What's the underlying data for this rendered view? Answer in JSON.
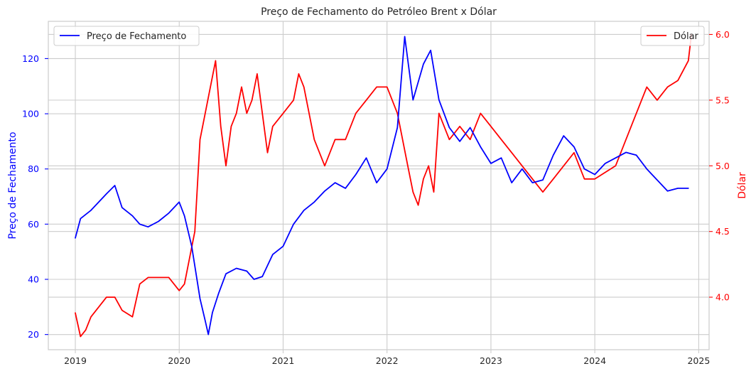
{
  "chart_data": {
    "type": "line",
    "title": "Preço de Fechamento do Petróleo Brent x Dólar",
    "xlabel": "",
    "x_ticks": [
      "2019",
      "2020",
      "2021",
      "2022",
      "2023",
      "2024",
      "2025"
    ],
    "x_range": [
      2018.74,
      2025.1
    ],
    "grid": true,
    "left_axis": {
      "label": "Preço de Fechamento",
      "color": "#0000ff",
      "ylim": [
        14.5,
        133.5
      ],
      "ticks": [
        "20",
        "40",
        "60",
        "80",
        "100",
        "120"
      ]
    },
    "right_axis": {
      "label": "Dólar",
      "color": "#ff0000",
      "ylim": [
        3.6,
        6.1
      ],
      "ticks": [
        "4.0",
        "4.5",
        "5.0",
        "5.5",
        "6.0"
      ]
    },
    "series": [
      {
        "name": "Preço de Fechamento",
        "axis": "left",
        "color": "#0000ff",
        "legend_position": "top-left",
        "x": [
          2019.0,
          2019.05,
          2019.15,
          2019.3,
          2019.38,
          2019.45,
          2019.55,
          2019.62,
          2019.7,
          2019.8,
          2019.9,
          2020.0,
          2020.05,
          2020.12,
          2020.2,
          2020.25,
          2020.28,
          2020.32,
          2020.38,
          2020.45,
          2020.55,
          2020.65,
          2020.72,
          2020.8,
          2020.9,
          2021.0,
          2021.1,
          2021.2,
          2021.3,
          2021.4,
          2021.5,
          2021.6,
          2021.7,
          2021.8,
          2021.9,
          2022.0,
          2022.1,
          2022.17,
          2022.25,
          2022.35,
          2022.42,
          2022.5,
          2022.6,
          2022.7,
          2022.8,
          2022.9,
          2023.0,
          2023.1,
          2023.2,
          2023.3,
          2023.4,
          2023.5,
          2023.6,
          2023.7,
          2023.8,
          2023.9,
          2024.0,
          2024.1,
          2024.2,
          2024.3,
          2024.4,
          2024.5,
          2024.6,
          2024.7,
          2024.8,
          2024.9
        ],
        "values": [
          55,
          62,
          65,
          71,
          74,
          66,
          63,
          60,
          59,
          61,
          64,
          68,
          63,
          52,
          33,
          25,
          20,
          28,
          35,
          42,
          44,
          43,
          40,
          41,
          49,
          52,
          60,
          65,
          68,
          72,
          75,
          73,
          78,
          84,
          75,
          80,
          95,
          128,
          105,
          118,
          123,
          105,
          95,
          90,
          95,
          88,
          82,
          84,
          75,
          80,
          75,
          76,
          85,
          92,
          88,
          80,
          78,
          82,
          84,
          86,
          85,
          80,
          76,
          72,
          73,
          73
        ]
      },
      {
        "name": "Dólar",
        "axis": "right",
        "color": "#ff0000",
        "legend_position": "top-right",
        "x": [
          2019.0,
          2019.05,
          2019.1,
          2019.15,
          2019.2,
          2019.3,
          2019.38,
          2019.45,
          2019.55,
          2019.62,
          2019.7,
          2019.8,
          2019.9,
          2020.0,
          2020.05,
          2020.1,
          2020.15,
          2020.2,
          2020.25,
          2020.3,
          2020.35,
          2020.4,
          2020.45,
          2020.5,
          2020.55,
          2020.6,
          2020.65,
          2020.7,
          2020.75,
          2020.8,
          2020.85,
          2020.9,
          2021.0,
          2021.1,
          2021.15,
          2021.2,
          2021.3,
          2021.4,
          2021.5,
          2021.6,
          2021.7,
          2021.8,
          2021.9,
          2022.0,
          2022.1,
          2022.2,
          2022.25,
          2022.3,
          2022.35,
          2022.4,
          2022.45,
          2022.5,
          2022.6,
          2022.7,
          2022.8,
          2022.9,
          2023.0,
          2023.1,
          2023.2,
          2023.3,
          2023.4,
          2023.5,
          2023.6,
          2023.7,
          2023.8,
          2023.9,
          2024.0,
          2024.1,
          2024.2,
          2024.3,
          2024.4,
          2024.5,
          2024.6,
          2024.7,
          2024.8,
          2024.9,
          2024.93
        ],
        "values": [
          3.88,
          3.7,
          3.75,
          3.85,
          3.9,
          4.0,
          4.0,
          3.9,
          3.85,
          4.1,
          4.15,
          4.15,
          4.15,
          4.05,
          4.1,
          4.3,
          4.5,
          5.2,
          5.4,
          5.6,
          5.8,
          5.3,
          5.0,
          5.3,
          5.4,
          5.6,
          5.4,
          5.5,
          5.7,
          5.4,
          5.1,
          5.3,
          5.4,
          5.5,
          5.7,
          5.6,
          5.2,
          5.0,
          5.2,
          5.2,
          5.4,
          5.5,
          5.6,
          5.6,
          5.4,
          5.0,
          4.8,
          4.7,
          4.9,
          5.0,
          4.8,
          5.4,
          5.2,
          5.3,
          5.2,
          5.4,
          5.3,
          5.2,
          5.1,
          5.0,
          4.9,
          4.8,
          4.9,
          5.0,
          5.1,
          4.9,
          4.9,
          4.95,
          5.0,
          5.2,
          5.4,
          5.6,
          5.5,
          5.6,
          5.65,
          5.8,
          6.0
        ]
      }
    ]
  },
  "colors": {
    "grid": "#cccccc",
    "frame": "#cccccc",
    "text": "#262626"
  }
}
